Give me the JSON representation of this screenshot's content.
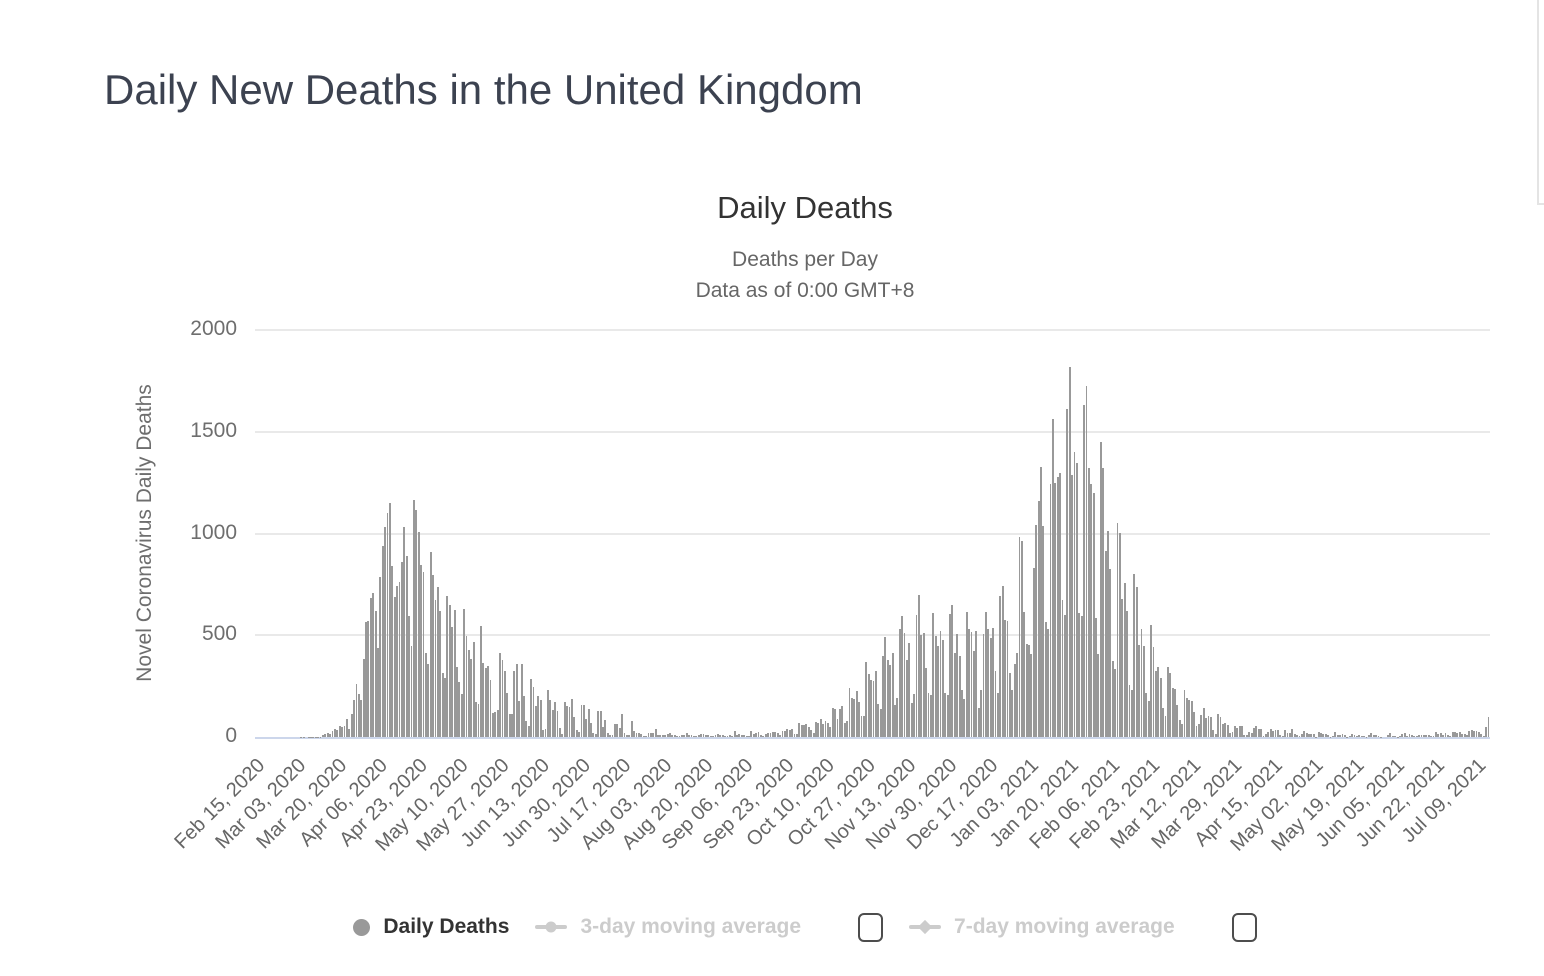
{
  "page": {
    "title": "Daily New Deaths in the United Kingdom"
  },
  "chart": {
    "title": "Daily Deaths",
    "subtitle_line1": "Deaths per Day",
    "subtitle_line2": "Data as of 0:00 GMT+8",
    "y_axis_title": "Novel Coronavirus Daily Deaths"
  },
  "legend": {
    "items": [
      {
        "label": "Daily Deaths",
        "enabled": true,
        "marker": "circle",
        "checkbox": false
      },
      {
        "label": "3-day moving average",
        "enabled": false,
        "marker": "line-circle",
        "checkbox": true,
        "checked": false
      },
      {
        "label": "7-day moving average",
        "enabled": false,
        "marker": "line-diamond",
        "checkbox": true,
        "checked": false
      }
    ]
  },
  "chart_data": {
    "type": "bar",
    "title": "Daily Deaths",
    "subtitle": "Deaths per Day — Data as of 0:00 GMT+8",
    "series_name": "Daily Deaths",
    "ylabel": "Novel Coronavirus Daily Deaths",
    "ylim": [
      0,
      2000
    ],
    "y_ticks": [
      0,
      500,
      1000,
      1500,
      2000
    ],
    "grid": true,
    "legend_position": "bottom",
    "start_date": "2020-02-15",
    "end_date": "2021-07-14",
    "tick_interval_days": 17,
    "x_tick_labels": [
      "Feb 15, 2020",
      "Mar 03, 2020",
      "Mar 20, 2020",
      "Apr 06, 2020",
      "Apr 23, 2020",
      "May 10, 2020",
      "May 27, 2020",
      "Jun 13, 2020",
      "Jun 30, 2020",
      "Jul 17, 2020",
      "Aug 03, 2020",
      "Aug 20, 2020",
      "Sep 06, 2020",
      "Sep 23, 2020",
      "Oct 10, 2020",
      "Oct 27, 2020",
      "Nov 13, 2020",
      "Nov 30, 2020",
      "Dec 17, 2020",
      "Jan 03, 2021",
      "Jan 20, 2021",
      "Feb 06, 2021",
      "Feb 23, 2021",
      "Mar 12, 2021",
      "Mar 29, 2021",
      "Apr 15, 2021",
      "May 02, 2021",
      "May 19, 2021",
      "Jun 05, 2021",
      "Jun 22, 2021",
      "Jul 09, 2021"
    ],
    "colors": {
      "bar": "#999999",
      "axis_line": "#ccd6eb",
      "gridline": "#e9e9e9",
      "disabled_text": "#cccccc",
      "title_text": "#3c4250"
    },
    "values": [
      0,
      0,
      0,
      0,
      0,
      0,
      0,
      0,
      0,
      0,
      0,
      0,
      0,
      0,
      0,
      0,
      0,
      0,
      0,
      1,
      1,
      0,
      1,
      1,
      2,
      2,
      2,
      1,
      10,
      14,
      20,
      16,
      32,
      41,
      33,
      56,
      48,
      54,
      87,
      41,
      115,
      181,
      260,
      209,
      180,
      381,
      563,
      569,
      684,
      708,
      621,
      439,
      786,
      938,
      1034,
      1103,
      1152,
      839,
      686,
      744,
      761,
      861,
      1034,
      888,
      596,
      449,
      1166,
      1116,
      1005,
      843,
      813,
      413,
      360,
      909,
      795,
      674,
      739,
      621,
      315,
      288,
      693,
      649,
      539,
      626,
      346,
      268,
      210,
      627,
      494,
      428,
      384,
      468,
      170,
      160,
      545,
      363,
      338,
      351,
      282,
      118,
      121,
      134,
      412,
      377,
      324,
      215,
      113,
      111,
      324,
      359,
      176,
      357,
      204,
      77,
      55,
      286,
      245,
      151,
      202,
      181,
      36,
      38,
      233,
      184,
      135,
      173,
      128,
      43,
      15,
      171,
      154,
      149,
      186,
      100,
      36,
      25,
      155,
      155,
      89,
      137,
      67,
      22,
      16,
      126,
      126,
      48,
      85,
      21,
      11,
      11,
      66,
      66,
      44,
      114,
      21,
      11,
      11,
      79,
      28,
      22,
      20,
      14,
      7,
      7,
      21,
      18,
      18,
      38,
      12,
      11,
      8,
      9,
      14,
      18,
      12,
      11,
      6,
      4,
      8,
      12,
      18,
      11,
      12,
      5,
      3,
      9,
      16,
      14,
      10,
      8,
      4,
      6,
      12,
      16,
      12,
      9,
      7,
      3,
      9,
      3,
      32,
      10,
      13,
      9,
      8,
      3,
      3,
      30,
      14,
      21,
      23,
      9,
      5,
      14,
      20,
      21,
      27,
      27,
      18,
      11,
      31,
      30,
      37,
      34,
      39,
      17,
      13,
      71,
      59,
      59,
      66,
      49,
      33,
      19,
      76,
      70,
      87,
      65,
      81,
      67,
      50,
      143,
      137,
      87,
      136,
      150,
      67,
      80,
      241,
      191,
      189,
      224,
      174,
      102,
      102,
      367,
      310,
      280,
      274,
      326,
      162,
      136,
      397,
      492,
      378,
      355,
      413,
      156,
      194,
      532,
      595,
      512,
      376,
      462,
      168,
      213,
      598,
      696,
      501,
      511,
      341,
      215,
      206,
      608,
      498,
      448,
      521,
      479,
      215,
      205,
      603,
      648,
      414,
      504,
      397,
      231,
      189,
      616,
      533,
      517,
      424,
      519,
      144,
      231,
      506,
      612,
      532,
      489,
      534,
      326,
      215,
      691,
      744,
      574,
      570,
      316,
      231,
      357,
      414,
      981,
      964,
      613,
      455,
      454,
      407,
      830,
      1041,
      1162,
      1325,
      1035,
      563,
      529,
      1243,
      1564,
      1248,
      1280,
      1295,
      671,
      599,
      1610,
      1820,
      1290,
      1401,
      1348,
      610,
      593,
      1631,
      1725,
      1322,
      1245,
      1200,
      587,
      406,
      1449,
      1322,
      915,
      1014,
      828,
      373,
      333,
      1052,
      1001,
      678,
      758,
      621,
      258,
      230,
      799,
      738,
      454,
      533,
      445,
      215,
      178,
      548,
      442,
      323,
      345,
      290,
      144,
      104,
      343,
      315,
      242,
      236,
      158,
      82,
      65,
      231,
      190,
      181,
      175,
      121,
      52,
      64,
      110,
      141,
      95,
      101,
      96,
      33,
      17,
      112,
      98,
      63,
      70,
      58,
      19,
      23,
      56,
      43,
      52,
      52,
      10,
      10,
      26,
      20,
      45,
      53,
      40,
      40,
      7,
      13,
      23,
      38,
      30,
      34,
      35,
      10,
      4,
      33,
      22,
      18,
      40,
      15,
      11,
      6,
      17,
      29,
      22,
      15,
      15,
      14,
      1,
      27,
      20,
      15,
      15,
      11,
      2,
      4,
      23,
      11,
      9,
      17,
      12,
      2,
      5,
      17,
      11,
      7,
      10,
      5,
      4,
      1,
      9,
      20,
      10,
      8,
      6,
      1,
      0,
      0,
      12,
      18,
      6,
      4,
      1,
      4,
      13,
      19,
      7,
      17,
      8,
      5,
      3,
      10,
      9,
      11,
      11,
      11,
      5,
      3,
      27,
      16,
      18,
      11,
      18,
      11,
      3,
      23,
      25,
      18,
      27,
      17,
      15,
      9,
      28,
      33,
      31,
      29,
      26,
      14,
      6,
      50,
      96
    ]
  }
}
